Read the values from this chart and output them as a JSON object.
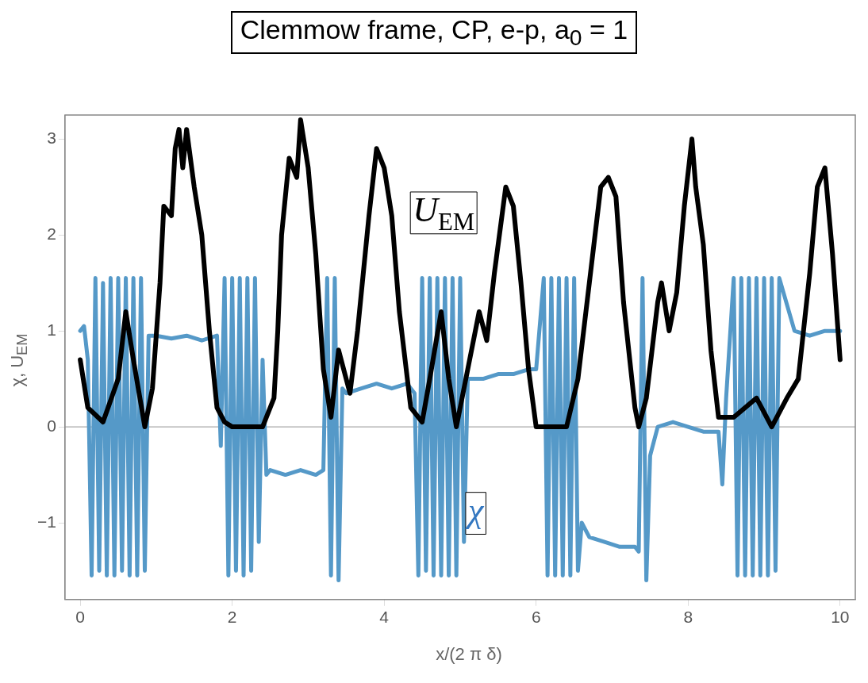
{
  "chart_data": {
    "type": "line",
    "title": "Clemmow frame, CP, e-p, a$_{0}$ = 1",
    "xlabel": "x/(2 π δ)",
    "ylabel": "χ, U$_{EM}$",
    "xlim": [
      -0.2,
      10.2
    ],
    "xticks": [
      0,
      2,
      4,
      6,
      8,
      10
    ],
    "ylim": [
      -1.8,
      3.25
    ],
    "yticks": [
      -1,
      0,
      1,
      2,
      3
    ],
    "grid": false,
    "legend": false,
    "marker": "none",
    "line_style": "solid",
    "ref_lines": [
      {
        "axis": "y",
        "value": 0,
        "color": "#a8a8a8"
      }
    ],
    "series": [
      {
        "name": "χ",
        "color": "#5599c8",
        "x": [
          0,
          0.05,
          0.1,
          0.15,
          0.2,
          0.25,
          0.3,
          0.35,
          0.4,
          0.45,
          0.5,
          0.55,
          0.6,
          0.65,
          0.7,
          0.75,
          0.8,
          0.85,
          0.9,
          1.0,
          1.2,
          1.4,
          1.6,
          1.8,
          1.85,
          1.9,
          1.95,
          2.0,
          2.05,
          2.1,
          2.15,
          2.2,
          2.25,
          2.3,
          2.35,
          2.4,
          2.45,
          2.5,
          2.7,
          2.9,
          3.1,
          3.2,
          3.25,
          3.3,
          3.35,
          3.4,
          3.45,
          3.5,
          3.7,
          3.9,
          4.1,
          4.3,
          4.4,
          4.45,
          4.5,
          4.55,
          4.6,
          4.65,
          4.7,
          4.75,
          4.8,
          4.85,
          4.9,
          4.95,
          5.0,
          5.05,
          5.1,
          5.3,
          5.5,
          5.7,
          5.9,
          6.0,
          6.1,
          6.15,
          6.2,
          6.25,
          6.3,
          6.35,
          6.4,
          6.45,
          6.5,
          6.55,
          6.6,
          6.7,
          6.9,
          7.1,
          7.3,
          7.35,
          7.4,
          7.45,
          7.5,
          7.6,
          7.8,
          8.0,
          8.2,
          8.4,
          8.45,
          8.5,
          8.6,
          8.65,
          8.7,
          8.75,
          8.8,
          8.85,
          8.9,
          8.95,
          9.0,
          9.05,
          9.1,
          9.15,
          9.2,
          9.4,
          9.6,
          9.8,
          10.0
        ],
        "values": [
          1.0,
          1.05,
          0.7,
          -1.55,
          1.55,
          -1.5,
          1.5,
          -1.55,
          1.55,
          -1.55,
          1.55,
          -1.5,
          1.55,
          -1.55,
          1.55,
          -1.55,
          1.55,
          -1.5,
          0.95,
          0.95,
          0.92,
          0.95,
          0.9,
          0.95,
          -0.2,
          1.55,
          -1.55,
          1.55,
          -1.5,
          1.55,
          -1.55,
          1.55,
          -1.5,
          1.55,
          -1.2,
          0.7,
          -0.5,
          -0.45,
          -0.5,
          -0.45,
          -0.5,
          -0.45,
          1.55,
          -1.55,
          1.55,
          -1.6,
          0.4,
          0.35,
          0.4,
          0.45,
          0.4,
          0.45,
          0.35,
          -1.55,
          1.55,
          -1.5,
          1.55,
          -1.55,
          1.55,
          -1.55,
          1.55,
          -1.55,
          1.55,
          -1.55,
          1.55,
          -1.2,
          0.5,
          0.5,
          0.55,
          0.55,
          0.6,
          0.6,
          1.55,
          -1.55,
          1.55,
          -1.55,
          1.55,
          -1.55,
          1.55,
          -1.55,
          1.55,
          -1.5,
          -1.0,
          -1.15,
          -1.2,
          -1.25,
          -1.25,
          -1.3,
          1.55,
          -1.6,
          -0.3,
          0.0,
          0.05,
          0.0,
          -0.05,
          -0.05,
          -0.6,
          0.3,
          1.55,
          -1.55,
          1.55,
          -1.55,
          1.55,
          -1.55,
          1.55,
          -1.55,
          1.55,
          -1.55,
          1.55,
          -1.5,
          1.55,
          1.0,
          0.95,
          1.0,
          1.0
        ]
      },
      {
        "name": "U$_{EM}$",
        "color": "#000000",
        "x": [
          0,
          0.1,
          0.3,
          0.5,
          0.6,
          0.7,
          0.85,
          0.95,
          1.05,
          1.1,
          1.2,
          1.25,
          1.3,
          1.35,
          1.4,
          1.5,
          1.6,
          1.7,
          1.8,
          1.9,
          2.0,
          2.4,
          2.55,
          2.6,
          2.65,
          2.75,
          2.85,
          2.9,
          3.0,
          3.1,
          3.2,
          3.3,
          3.4,
          3.55,
          3.65,
          3.8,
          3.9,
          4.0,
          4.1,
          4.2,
          4.35,
          4.5,
          4.6,
          4.75,
          4.85,
          4.95,
          5.1,
          5.25,
          5.35,
          5.45,
          5.6,
          5.7,
          5.8,
          5.9,
          6.0,
          6.4,
          6.55,
          6.7,
          6.85,
          6.95,
          7.05,
          7.15,
          7.3,
          7.35,
          7.45,
          7.6,
          7.65,
          7.75,
          7.85,
          7.95,
          8.05,
          8.1,
          8.2,
          8.3,
          8.4,
          8.6,
          8.9,
          9.1,
          9.3,
          9.45,
          9.6,
          9.7,
          9.8,
          9.9,
          10.0
        ],
        "values": [
          0.7,
          0.2,
          0.05,
          0.5,
          1.2,
          0.7,
          0.0,
          0.4,
          1.5,
          2.3,
          2.2,
          2.9,
          3.1,
          2.7,
          3.1,
          2.5,
          2.0,
          1.0,
          0.2,
          0.05,
          0.0,
          0.0,
          0.3,
          1.0,
          2.0,
          2.8,
          2.6,
          3.2,
          2.7,
          1.8,
          0.6,
          0.1,
          0.8,
          0.35,
          1.0,
          2.2,
          2.9,
          2.7,
          2.2,
          1.2,
          0.2,
          0.05,
          0.5,
          1.2,
          0.5,
          0.0,
          0.6,
          1.2,
          0.9,
          1.6,
          2.5,
          2.3,
          1.5,
          0.6,
          0.0,
          0.0,
          0.5,
          1.5,
          2.5,
          2.6,
          2.4,
          1.3,
          0.2,
          0.0,
          0.3,
          1.3,
          1.5,
          1.0,
          1.4,
          2.3,
          3.0,
          2.5,
          1.9,
          0.8,
          0.1,
          0.1,
          0.3,
          0.0,
          0.3,
          0.5,
          1.6,
          2.5,
          2.7,
          1.8,
          0.7
        ]
      }
    ]
  }
}
